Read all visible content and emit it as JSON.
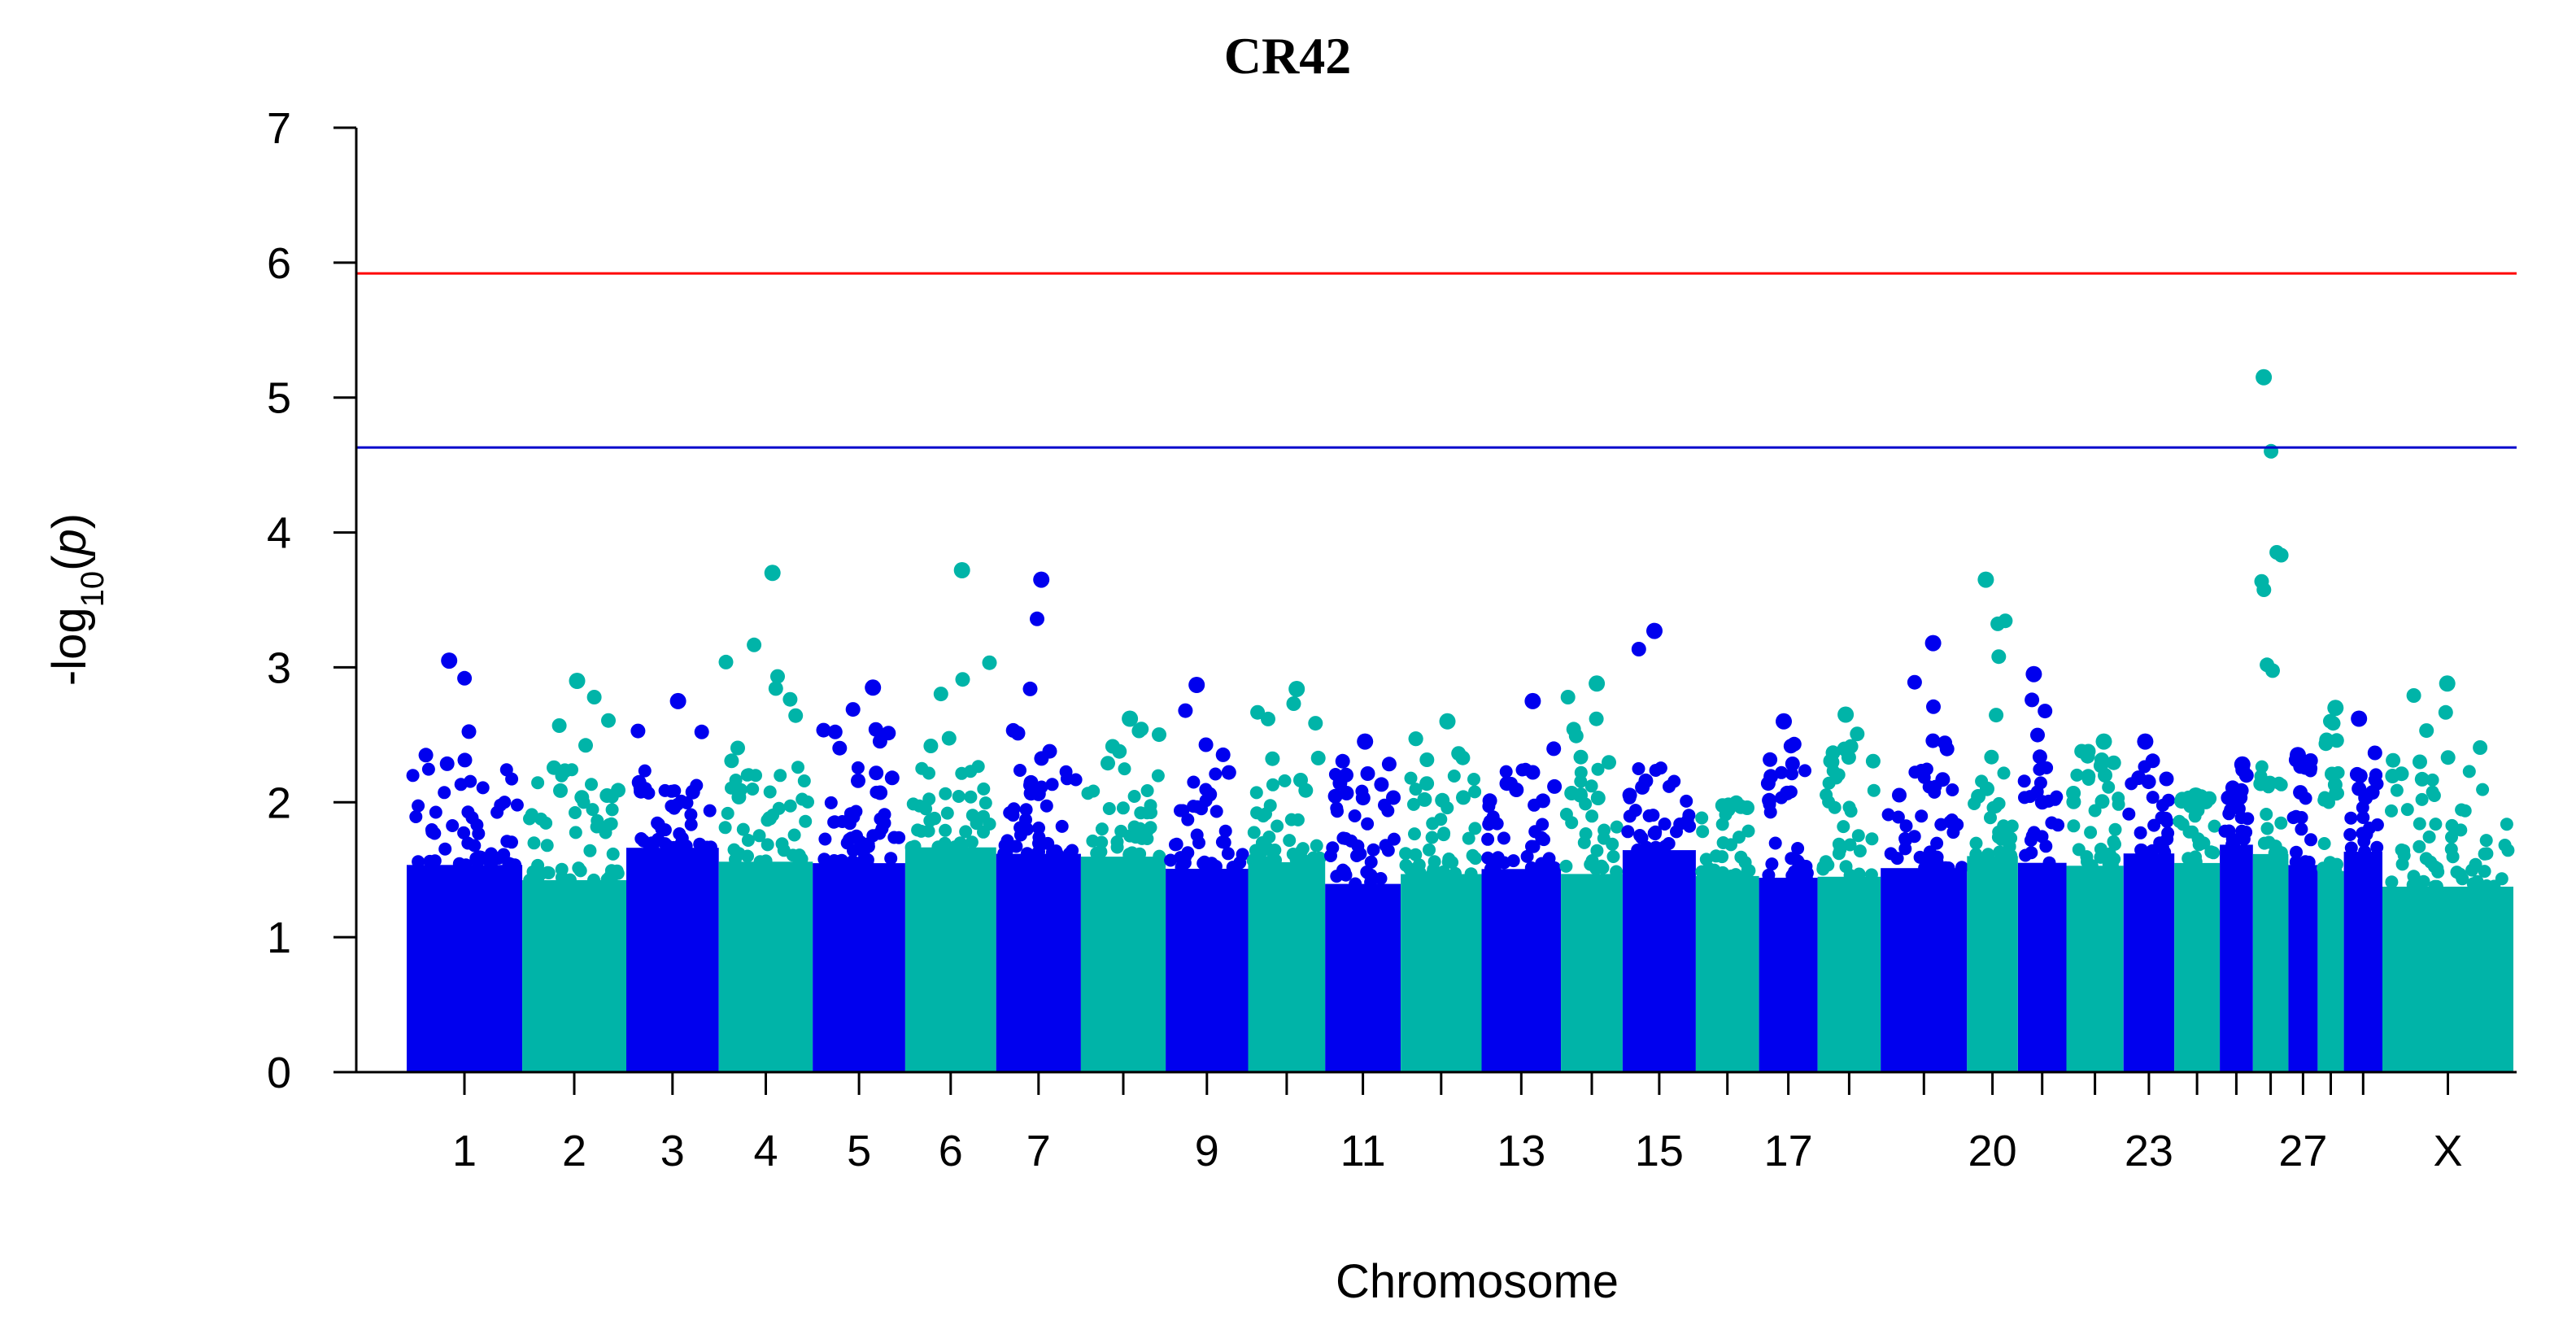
{
  "chart_data": {
    "type": "scatter",
    "title": "CR42",
    "xlabel": "Chromosome",
    "ylabel": "-log10(p)",
    "ylim": [
      0,
      7
    ],
    "yticks": [
      0,
      1,
      2,
      3,
      4,
      5,
      6,
      7
    ],
    "grid": false,
    "legend": "none",
    "point_colors": [
      "#0000ee",
      "#00b4a8"
    ],
    "chromosomes": [
      "1",
      "2",
      "3",
      "4",
      "5",
      "6",
      "7",
      "8",
      "9",
      "10",
      "11",
      "12",
      "13",
      "14",
      "15",
      "16",
      "17",
      "18",
      "19",
      "20",
      "21",
      "22",
      "23",
      "24",
      "25",
      "26",
      "27",
      "28",
      "29",
      "X"
    ],
    "x_tick_labels": [
      "1",
      "2",
      "3",
      "4",
      "5",
      "6",
      "7",
      "",
      "9",
      "",
      "11",
      "",
      "13",
      "",
      "15",
      "",
      "17",
      "",
      "",
      "20",
      "",
      "",
      "23",
      "",
      "",
      "",
      "27",
      "",
      "",
      "X"
    ],
    "chromosome_max": [
      3.05,
      2.9,
      2.75,
      3.7,
      2.85,
      3.72,
      3.65,
      2.62,
      2.87,
      2.84,
      2.45,
      2.6,
      2.75,
      2.88,
      3.27,
      1.95,
      2.6,
      2.65,
      3.18,
      3.65,
      2.95,
      2.45,
      2.45,
      2.05,
      2.28,
      5.15,
      2.35,
      2.7,
      2.62,
      2.88
    ],
    "thresholds": [
      {
        "value": 5.92,
        "color": "#ff0000"
      },
      {
        "value": 4.63,
        "color": "#0000cc"
      }
    ]
  }
}
